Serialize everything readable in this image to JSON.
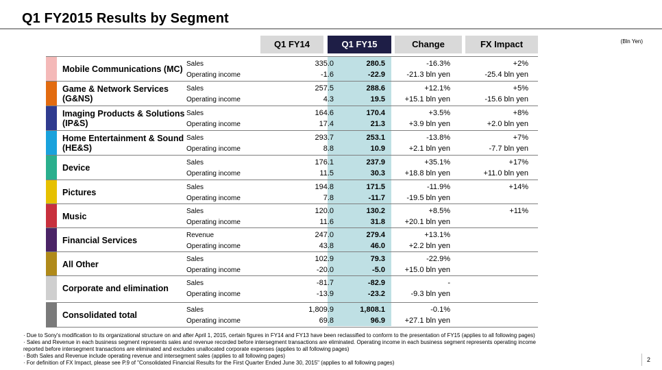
{
  "title": "Q1 FY2015  Results by Segment",
  "unit": "(Bln Yen)",
  "columns": {
    "prev": "Q1 FY14",
    "cur": "Q1 FY15",
    "change": "Change",
    "fx": "FX Impact"
  },
  "colors": {
    "current_header": "#1e1e46",
    "current_column": "#bfe0e4",
    "header_gray": "#d9d9d9"
  },
  "segments": [
    {
      "name": "Mobile Communications (MC)",
      "color": "#f4b9b8",
      "rows": [
        {
          "label": "Sales",
          "fy14": "335.0",
          "fy15": "280.5",
          "change": "-16.3%",
          "fx": "+2%"
        },
        {
          "label": "Operating income",
          "fy14": "-1.6",
          "fy15": "-22.9",
          "change": "-21.3 bln yen",
          "fx": "-25.4 bln yen"
        }
      ]
    },
    {
      "name": "Game & Network Services (G&NS)",
      "color": "#e26b10",
      "rows": [
        {
          "label": "Sales",
          "fy14": "257.5",
          "fy15": "288.6",
          "change": "+12.1%",
          "fx": "+5%"
        },
        {
          "label": "Operating income",
          "fy14": "4.3",
          "fy15": "19.5",
          "change": "+15.1 bln yen",
          "fx": "-15.6 bln yen"
        }
      ]
    },
    {
      "name": "Imaging Products & Solutions (IP&S)",
      "color": "#2f3b8f",
      "rows": [
        {
          "label": "Sales",
          "fy14": "164.6",
          "fy15": "170.4",
          "change": "+3.5%",
          "fx": "+8%"
        },
        {
          "label": "Operating income",
          "fy14": "17.4",
          "fy15": "21.3",
          "change": "+3.9 bln yen",
          "fx": "+2.0 bln yen"
        }
      ]
    },
    {
      "name": "Home Entertainment & Sound (HE&S)",
      "color": "#19a2dc",
      "rows": [
        {
          "label": "Sales",
          "fy14": "293.7",
          "fy15": "253.1",
          "change": "-13.8%",
          "fx": "+7%"
        },
        {
          "label": "Operating income",
          "fy14": "8.8",
          "fy15": "10.9",
          "change": "+2.1 bln yen",
          "fx": "-7.7 bln yen"
        }
      ]
    },
    {
      "name": "Device",
      "color": "#2aaf8d",
      "rows": [
        {
          "label": "Sales",
          "fy14": "176.1",
          "fy15": "237.9",
          "change": "+35.1%",
          "fx": "+17%"
        },
        {
          "label": "Operating income",
          "fy14": "11.5",
          "fy15": "30.3",
          "change": "+18.8 bln yen",
          "fx": "+11.0 bln yen"
        }
      ]
    },
    {
      "name": "Pictures",
      "color": "#e6c000",
      "rows": [
        {
          "label": "Sales",
          "fy14": "194.8",
          "fy15": "171.5",
          "change": "-11.9%",
          "fx": "+14%"
        },
        {
          "label": "Operating income",
          "fy14": "7.8",
          "fy15": "-11.7",
          "change": "-19.5 bln yen",
          "fx": ""
        }
      ]
    },
    {
      "name": "Music",
      "color": "#c8303d",
      "rows": [
        {
          "label": "Sales",
          "fy14": "120.0",
          "fy15": "130.2",
          "change": "+8.5%",
          "fx": "+11%"
        },
        {
          "label": "Operating income",
          "fy14": "11.6",
          "fy15": "31.8",
          "change": "+20.1 bln yen",
          "fx": ""
        }
      ]
    },
    {
      "name": "Financial Services",
      "color": "#4b2466",
      "rows": [
        {
          "label": "Revenue",
          "fy14": "247.0",
          "fy15": "279.4",
          "change": "+13.1%",
          "fx": ""
        },
        {
          "label": "Operating income",
          "fy14": "43.8",
          "fy15": "46.0",
          "change": "+2.2 bln yen",
          "fx": ""
        }
      ]
    },
    {
      "name": "All Other",
      "color": "#b08a1a",
      "rows": [
        {
          "label": "Sales",
          "fy14": "102.9",
          "fy15": "79.3",
          "change": "-22.9%",
          "fx": ""
        },
        {
          "label": "Operating income",
          "fy14": "-20.0",
          "fy15": "-5.0",
          "change": "+15.0 bln yen",
          "fx": ""
        }
      ]
    },
    {
      "name": "Corporate and elimination",
      "color": "#cfcfcf",
      "rows": [
        {
          "label": "Sales",
          "fy14": "-81.7",
          "fy15": "-82.9",
          "change": "-",
          "fx": ""
        },
        {
          "label": "Operating income",
          "fy14": "-13.9",
          "fy15": "-23.2",
          "change": "-9.3 bln yen",
          "fx": ""
        }
      ]
    }
  ],
  "total": {
    "name": "Consolidated total",
    "color": "#7a7a7a",
    "rows": [
      {
        "label": "Sales",
        "fy14": "1,809.9",
        "fy15": "1,808.1",
        "change": "-0.1%",
        "fx": ""
      },
      {
        "label": "Operating income",
        "fy14": "69.8",
        "fy15": "96.9",
        "change": "+27.1 bln yen",
        "fx": ""
      }
    ]
  },
  "notes": [
    "· Due to Sony's modification to its organizational structure on and after April 1, 2015, certain figures in FY14 and FY13 have been reclassified to conform to the presentation of FY15 (applies to all following pages)",
    "· Sales and Revenue in each business segment represents sales and revenue recorded before intersegment transactions are eliminated. Operating income in each business segment represents operating income",
    "  reported before intersegment transactions are eliminated and excludes unallocated corporate expenses (applies to all following pages)",
    "· Both Sales and Revenue include operating revenue and intersegment sales (applies to all following pages)",
    "· For definition of FX Impact, please see P.9 of \"Consolidated Financial Results for the First Quarter Ended June 30, 2015\" (applies to all following pages)"
  ],
  "page_number": "2"
}
